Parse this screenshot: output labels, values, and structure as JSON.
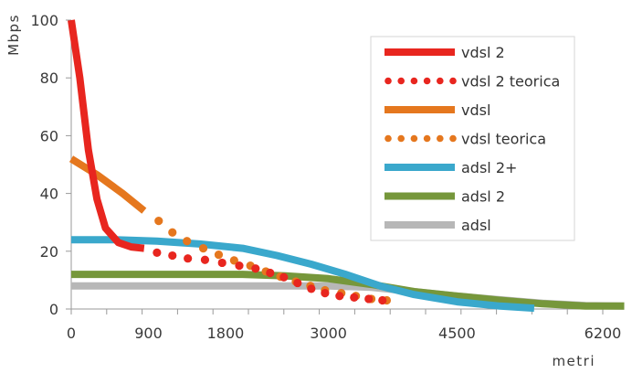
{
  "chart_data": {
    "type": "line",
    "xlabel": "metri",
    "ylabel": "Mbps",
    "xlim": [
      0,
      6200
    ],
    "ylim": [
      0,
      100
    ],
    "x_ticks": [
      0,
      900,
      1800,
      3000,
      4500,
      6200
    ],
    "y_ticks": [
      0,
      20,
      40,
      60,
      80,
      100
    ],
    "x_tick_labels": [
      "0",
      "900",
      "1800",
      "3000",
      "4500",
      "6200"
    ],
    "y_tick_labels": [
      "0",
      "20",
      "40",
      "60",
      "80",
      "100"
    ],
    "grid": false,
    "legend_position": "top-right",
    "series": [
      {
        "name": "vdsl 2",
        "color": "#e8261f",
        "style": "solid",
        "points": [
          [
            0,
            100
          ],
          [
            100,
            80
          ],
          [
            200,
            55
          ],
          [
            300,
            38
          ],
          [
            400,
            28
          ],
          [
            550,
            23
          ],
          [
            700,
            21.5
          ],
          [
            850,
            21
          ]
        ]
      },
      {
        "name": "vdsl 2 teorica",
        "color": "#e8261f",
        "style": "dotted",
        "points": [
          [
            1000,
            19.5
          ],
          [
            1180,
            18.5
          ],
          [
            1360,
            17.5
          ],
          [
            1560,
            17
          ],
          [
            1760,
            16
          ],
          [
            1960,
            15
          ],
          [
            2150,
            14
          ],
          [
            2320,
            12.5
          ],
          [
            2480,
            11
          ],
          [
            2640,
            9
          ],
          [
            2800,
            7
          ],
          [
            2960,
            5.5
          ],
          [
            3130,
            4.5
          ],
          [
            3300,
            4
          ],
          [
            3470,
            3.5
          ],
          [
            3630,
            3
          ]
        ]
      },
      {
        "name": "vdsl",
        "color": "#e5771e",
        "style": "solid",
        "points": [
          [
            0,
            52
          ],
          [
            300,
            46.5
          ],
          [
            600,
            40
          ],
          [
            850,
            34
          ]
        ]
      },
      {
        "name": "vdsl teorica",
        "color": "#e5771e",
        "style": "dotted",
        "points": [
          [
            1020,
            30.5
          ],
          [
            1180,
            26.5
          ],
          [
            1350,
            23.5
          ],
          [
            1540,
            21
          ],
          [
            1720,
            18.8
          ],
          [
            1900,
            16.8
          ],
          [
            2090,
            15
          ],
          [
            2270,
            13
          ],
          [
            2440,
            11.2
          ],
          [
            2620,
            9.5
          ],
          [
            2790,
            8
          ],
          [
            2960,
            6.5
          ],
          [
            3150,
            5.5
          ],
          [
            3320,
            4.5
          ],
          [
            3500,
            3.5
          ],
          [
            3680,
            3
          ]
        ]
      },
      {
        "name": "adsl 2+",
        "color": "#3aa8cc",
        "style": "solid",
        "points": [
          [
            0,
            24
          ],
          [
            500,
            24
          ],
          [
            1000,
            23.5
          ],
          [
            1500,
            22.5
          ],
          [
            2000,
            21
          ],
          [
            2400,
            18.5
          ],
          [
            2800,
            15.5
          ],
          [
            3200,
            12
          ],
          [
            3600,
            8
          ],
          [
            4000,
            5
          ],
          [
            4500,
            2.5
          ],
          [
            5000,
            1
          ],
          [
            5400,
            0.3
          ]
        ]
      },
      {
        "name": "adsl 2",
        "color": "#76973b",
        "style": "solid",
        "points": [
          [
            0,
            12
          ],
          [
            1000,
            12
          ],
          [
            2000,
            12
          ],
          [
            2500,
            11.5
          ],
          [
            3000,
            10.5
          ],
          [
            3500,
            8.5
          ],
          [
            4000,
            6
          ],
          [
            4500,
            4.5
          ],
          [
            5000,
            3
          ],
          [
            5500,
            1.8
          ],
          [
            6000,
            1
          ],
          [
            6450,
            1
          ]
        ]
      },
      {
        "name": "adsl",
        "color": "#b7b7b7",
        "style": "solid",
        "points": [
          [
            0,
            8
          ],
          [
            1000,
            8
          ],
          [
            2000,
            8
          ],
          [
            3000,
            8
          ],
          [
            3500,
            7.5
          ],
          [
            4000,
            6
          ],
          [
            4500,
            4.5
          ],
          [
            5000,
            3.2
          ],
          [
            5500,
            2
          ],
          [
            6000,
            1.2
          ],
          [
            6450,
            1
          ]
        ]
      }
    ]
  }
}
